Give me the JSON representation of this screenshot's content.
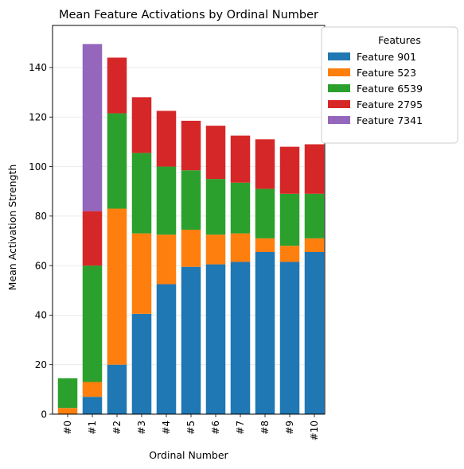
{
  "chart_data": {
    "type": "bar",
    "stacked": true,
    "title": "Mean Feature Activations by Ordinal Number",
    "xlabel": "Ordinal Number",
    "ylabel": "Mean Activation Strength",
    "ylim": [
      0,
      157
    ],
    "yticks": [
      0,
      20,
      40,
      60,
      80,
      100,
      120,
      140
    ],
    "grid": "y",
    "legend_title": "Features",
    "legend_position": "outside-right",
    "categories": [
      "#0",
      "#1",
      "#2",
      "#3",
      "#4",
      "#5",
      "#6",
      "#7",
      "#8",
      "#9",
      "#10"
    ],
    "series": [
      {
        "name": "Feature 901",
        "color": "#1f77b4",
        "values": [
          0,
          7,
          20,
          40.5,
          52.5,
          59.5,
          60.5,
          61.5,
          65.5,
          61.5,
          65.5
        ]
      },
      {
        "name": "Feature 523",
        "color": "#ff7f0e",
        "values": [
          2.5,
          6,
          63,
          32.5,
          20,
          15,
          12,
          11.5,
          5.5,
          6.5,
          5.5
        ]
      },
      {
        "name": "Feature 6539",
        "color": "#2ca02c",
        "values": [
          12,
          47,
          38.5,
          32.5,
          27.5,
          24,
          22.5,
          20.5,
          20,
          21,
          18
        ]
      },
      {
        "name": "Feature 2795",
        "color": "#d62728",
        "values": [
          0,
          22,
          22.5,
          22.5,
          22.5,
          20,
          21.5,
          19,
          20,
          19,
          20
        ]
      },
      {
        "name": "Feature 7341",
        "color": "#9467bd",
        "values": [
          0,
          67.5,
          0,
          0,
          0,
          0,
          0,
          0,
          0,
          0,
          0
        ]
      }
    ]
  }
}
